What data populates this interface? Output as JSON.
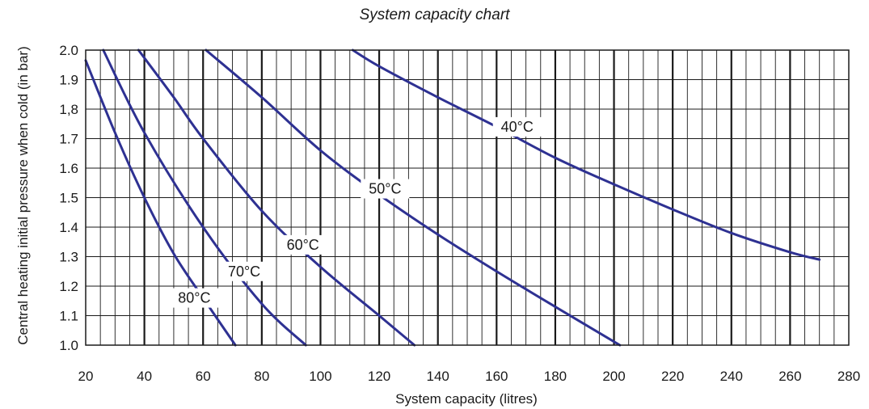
{
  "chart_data": {
    "type": "line",
    "title": "System capacity chart",
    "xlabel": "System capacity (litres)",
    "ylabel": "Central heating initial pressure when cold (in bar)",
    "xlim": [
      20,
      280
    ],
    "ylim": [
      1.0,
      2.0
    ],
    "x_ticks": [
      "20",
      "40",
      "60",
      "80",
      "100",
      "120",
      "140",
      "160",
      "180",
      "200",
      "220",
      "240",
      "260",
      "280"
    ],
    "y_ticks": [
      "1.0",
      "1.1",
      "1.2",
      "1.3",
      "1.4",
      "1.5",
      "1.6",
      "1.7",
      "1,8",
      "1.9",
      "2.0"
    ],
    "grid": true,
    "line_color": "#2e3192",
    "series": [
      {
        "name": "40°C",
        "label_at": [
          167,
          1.74
        ],
        "points": [
          [
            111,
            2.0
          ],
          [
            120,
            1.945
          ],
          [
            140,
            1.84
          ],
          [
            160,
            1.74
          ],
          [
            180,
            1.635
          ],
          [
            200,
            1.545
          ],
          [
            220,
            1.46
          ],
          [
            240,
            1.38
          ],
          [
            260,
            1.315
          ],
          [
            270,
            1.29
          ]
        ]
      },
      {
        "name": "50°C",
        "label_at": [
          122,
          1.53
        ],
        "points": [
          [
            61,
            2.0
          ],
          [
            80,
            1.84
          ],
          [
            100,
            1.66
          ],
          [
            120,
            1.51
          ],
          [
            140,
            1.375
          ],
          [
            160,
            1.25
          ],
          [
            180,
            1.13
          ],
          [
            202,
            1.0
          ]
        ]
      },
      {
        "name": "60°C",
        "label_at": [
          94,
          1.34
        ],
        "points": [
          [
            38,
            2.0
          ],
          [
            50,
            1.84
          ],
          [
            60,
            1.7
          ],
          [
            80,
            1.455
          ],
          [
            100,
            1.265
          ],
          [
            120,
            1.1
          ],
          [
            132,
            1.0
          ]
        ]
      },
      {
        "name": "70°C",
        "label_at": [
          74,
          1.25
        ],
        "points": [
          [
            26,
            2.0
          ],
          [
            40,
            1.72
          ],
          [
            60,
            1.4
          ],
          [
            80,
            1.14
          ],
          [
            95,
            1.0
          ]
        ]
      },
      {
        "name": "80°C",
        "label_at": [
          57,
          1.16
        ],
        "points": [
          [
            20,
            1.965
          ],
          [
            30,
            1.72
          ],
          [
            40,
            1.5
          ],
          [
            50,
            1.31
          ],
          [
            60,
            1.16
          ],
          [
            71,
            1.0
          ]
        ]
      }
    ]
  }
}
